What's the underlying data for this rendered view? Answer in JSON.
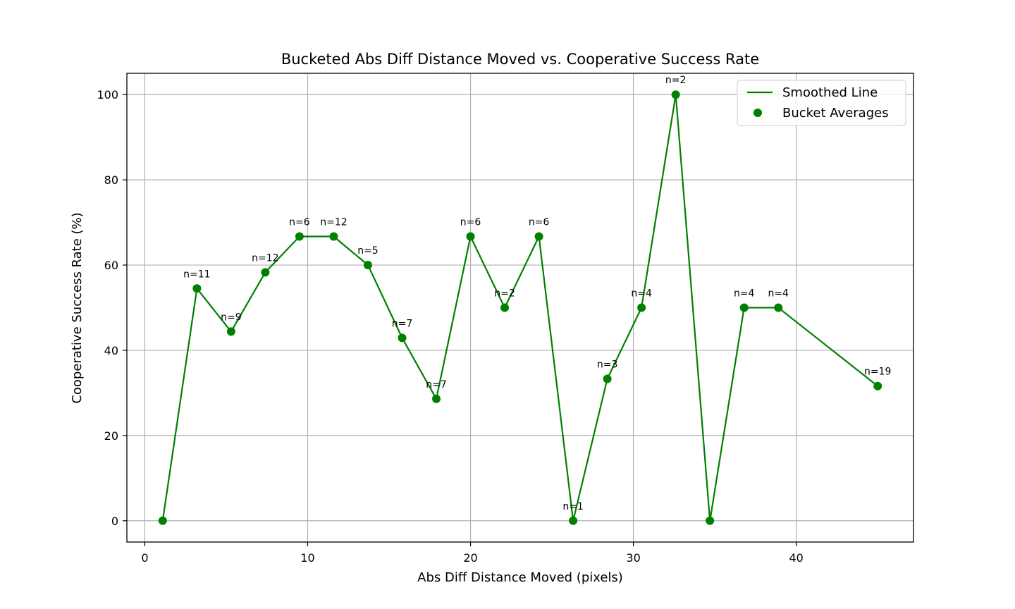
{
  "chart_data": {
    "type": "line",
    "title": "Bucketed Abs Diff Distance Moved vs. Cooperative Success Rate",
    "xlabel": "Abs Diff Distance Moved (pixels)",
    "ylabel": "Cooperative Success Rate (%)",
    "xlim": [
      -1.1,
      47.2
    ],
    "ylim": [
      -5,
      105
    ],
    "xticks": [
      0,
      10,
      20,
      30,
      40
    ],
    "yticks": [
      0,
      20,
      40,
      60,
      80,
      100
    ],
    "grid": true,
    "legend_position": "top-right",
    "series": [
      {
        "name": "Smoothed Line",
        "kind": "line",
        "color": "#008000"
      },
      {
        "name": "Bucket Averages",
        "kind": "scatter",
        "color": "#008000"
      }
    ],
    "points": [
      {
        "x": 1.1,
        "y": 0,
        "label": ""
      },
      {
        "x": 3.2,
        "y": 54.5,
        "label": "n=11"
      },
      {
        "x": 5.3,
        "y": 44.4,
        "label": "n=9"
      },
      {
        "x": 7.4,
        "y": 58.3,
        "label": "n=12"
      },
      {
        "x": 9.5,
        "y": 66.7,
        "label": "n=6"
      },
      {
        "x": 11.6,
        "y": 66.7,
        "label": "n=12"
      },
      {
        "x": 13.7,
        "y": 60.0,
        "label": "n=5"
      },
      {
        "x": 15.8,
        "y": 42.9,
        "label": "n=7"
      },
      {
        "x": 17.9,
        "y": 28.6,
        "label": "n=7"
      },
      {
        "x": 20.0,
        "y": 66.7,
        "label": "n=6"
      },
      {
        "x": 22.1,
        "y": 50.0,
        "label": "n=2"
      },
      {
        "x": 24.2,
        "y": 66.7,
        "label": "n=6"
      },
      {
        "x": 26.3,
        "y": 0,
        "label": "n=1"
      },
      {
        "x": 28.4,
        "y": 33.3,
        "label": "n=3"
      },
      {
        "x": 30.5,
        "y": 50.0,
        "label": "n=4"
      },
      {
        "x": 32.6,
        "y": 100,
        "label": "n=2"
      },
      {
        "x": 34.7,
        "y": 0,
        "label": ""
      },
      {
        "x": 36.8,
        "y": 50.0,
        "label": "n=4"
      },
      {
        "x": 38.9,
        "y": 50.0,
        "label": "n=4"
      },
      {
        "x": 45.0,
        "y": 31.6,
        "label": "n=19"
      }
    ]
  }
}
